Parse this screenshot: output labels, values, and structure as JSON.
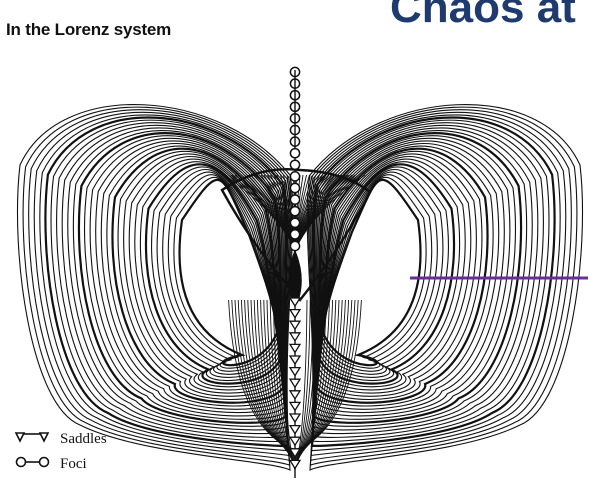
{
  "slide": {
    "title_fragment": "Chaos at",
    "subtitle": "In the Lorenz system"
  },
  "figure": {
    "legend": {
      "saddles_label": "Saddles",
      "foci_label": "Foci"
    },
    "colors": {
      "trajectory": "#111111",
      "marker_bar": "#6a2c9a",
      "title": "#1f3a6e"
    }
  }
}
